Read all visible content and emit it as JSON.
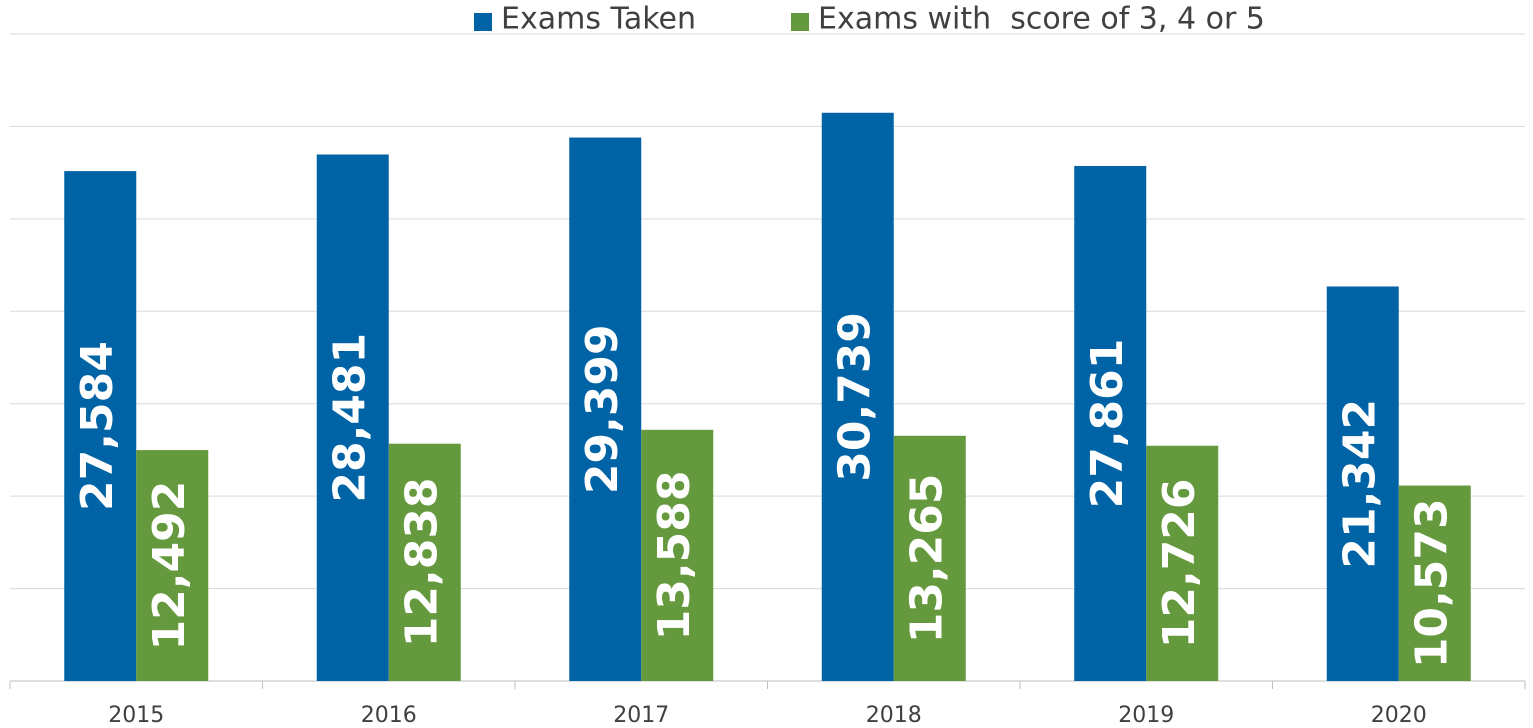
{
  "chart_data": {
    "type": "bar",
    "categories": [
      "2015",
      "2016",
      "2017",
      "2018",
      "2019",
      "2020"
    ],
    "series": [
      {
        "name": "Exams Taken",
        "color": "#0063a6",
        "values": [
          27584,
          28481,
          29399,
          30739,
          27861,
          21342
        ],
        "value_labels": [
          "27,584",
          "28,481",
          "29,399",
          "30,739",
          "27,861",
          "21,342"
        ]
      },
      {
        "name": "Exams with  score of 3, 4 or 5",
        "color": "#65993d",
        "values": [
          12492,
          12838,
          13588,
          13265,
          12726,
          10573
        ],
        "value_labels": [
          "12,492",
          "12,838",
          "13,588",
          "13,265",
          "12,726",
          "10,573"
        ]
      }
    ],
    "ylim": [
      0,
      35000
    ],
    "yticks": [
      0,
      5000,
      10000,
      15000,
      20000,
      25000,
      30000,
      35000
    ],
    "grid": true,
    "legend": "top"
  }
}
